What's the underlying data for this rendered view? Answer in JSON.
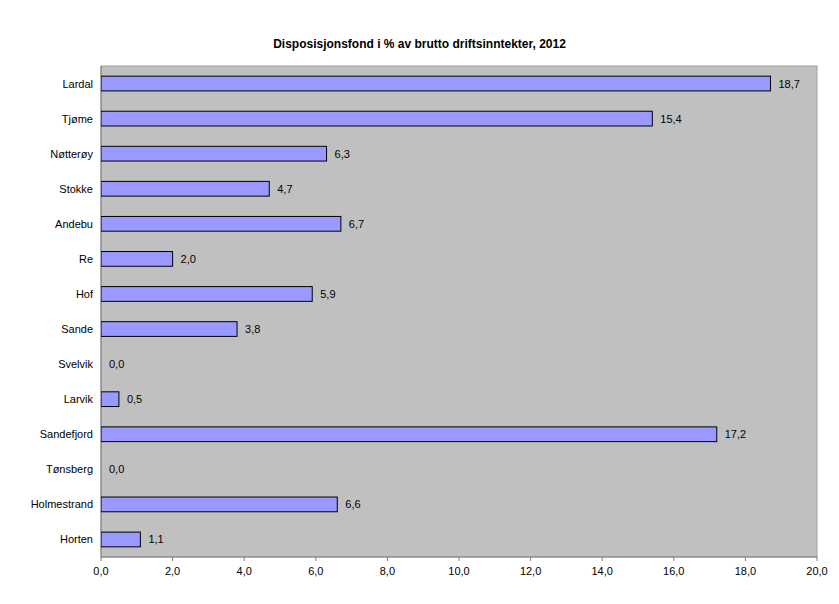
{
  "chart_data": {
    "type": "bar",
    "orientation": "horizontal",
    "title": "Disposisjonsfond i % av brutto driftsinntekter, 2012",
    "categories": [
      "Lardal",
      "Tjøme",
      "Nøtterøy",
      "Stokke",
      "Andebu",
      "Re",
      "Hof",
      "Sande",
      "Svelvik",
      "Larvik",
      "Sandefjord",
      "Tønsberg",
      "Holmestrand",
      "Horten"
    ],
    "values": [
      18.7,
      15.4,
      6.3,
      4.7,
      6.7,
      2.0,
      5.9,
      3.8,
      0.0,
      0.5,
      17.2,
      0.0,
      6.6,
      1.1
    ],
    "value_labels": [
      "18,7",
      "15,4",
      "6,3",
      "4,7",
      "6,7",
      "2,0",
      "5,9",
      "3,8",
      "0,0",
      "0,5",
      "17,2",
      "0,0",
      "6,6",
      "1,1"
    ],
    "color": "#9999ff",
    "xlim": [
      0,
      20
    ],
    "xticks": [
      {
        "value": 0,
        "label": "0,0"
      },
      {
        "value": 2,
        "label": "2,0"
      },
      {
        "value": 4,
        "label": "4,0"
      },
      {
        "value": 6,
        "label": "6,0"
      },
      {
        "value": 8,
        "label": "8,0"
      },
      {
        "value": 10,
        "label": "10,0"
      },
      {
        "value": 12,
        "label": "12,0"
      },
      {
        "value": 14,
        "label": "14,0"
      },
      {
        "value": 16,
        "label": "16,0"
      },
      {
        "value": 18,
        "label": "18,0"
      },
      {
        "value": 20,
        "label": "20,0"
      }
    ],
    "grid": false,
    "data_labels": true
  }
}
